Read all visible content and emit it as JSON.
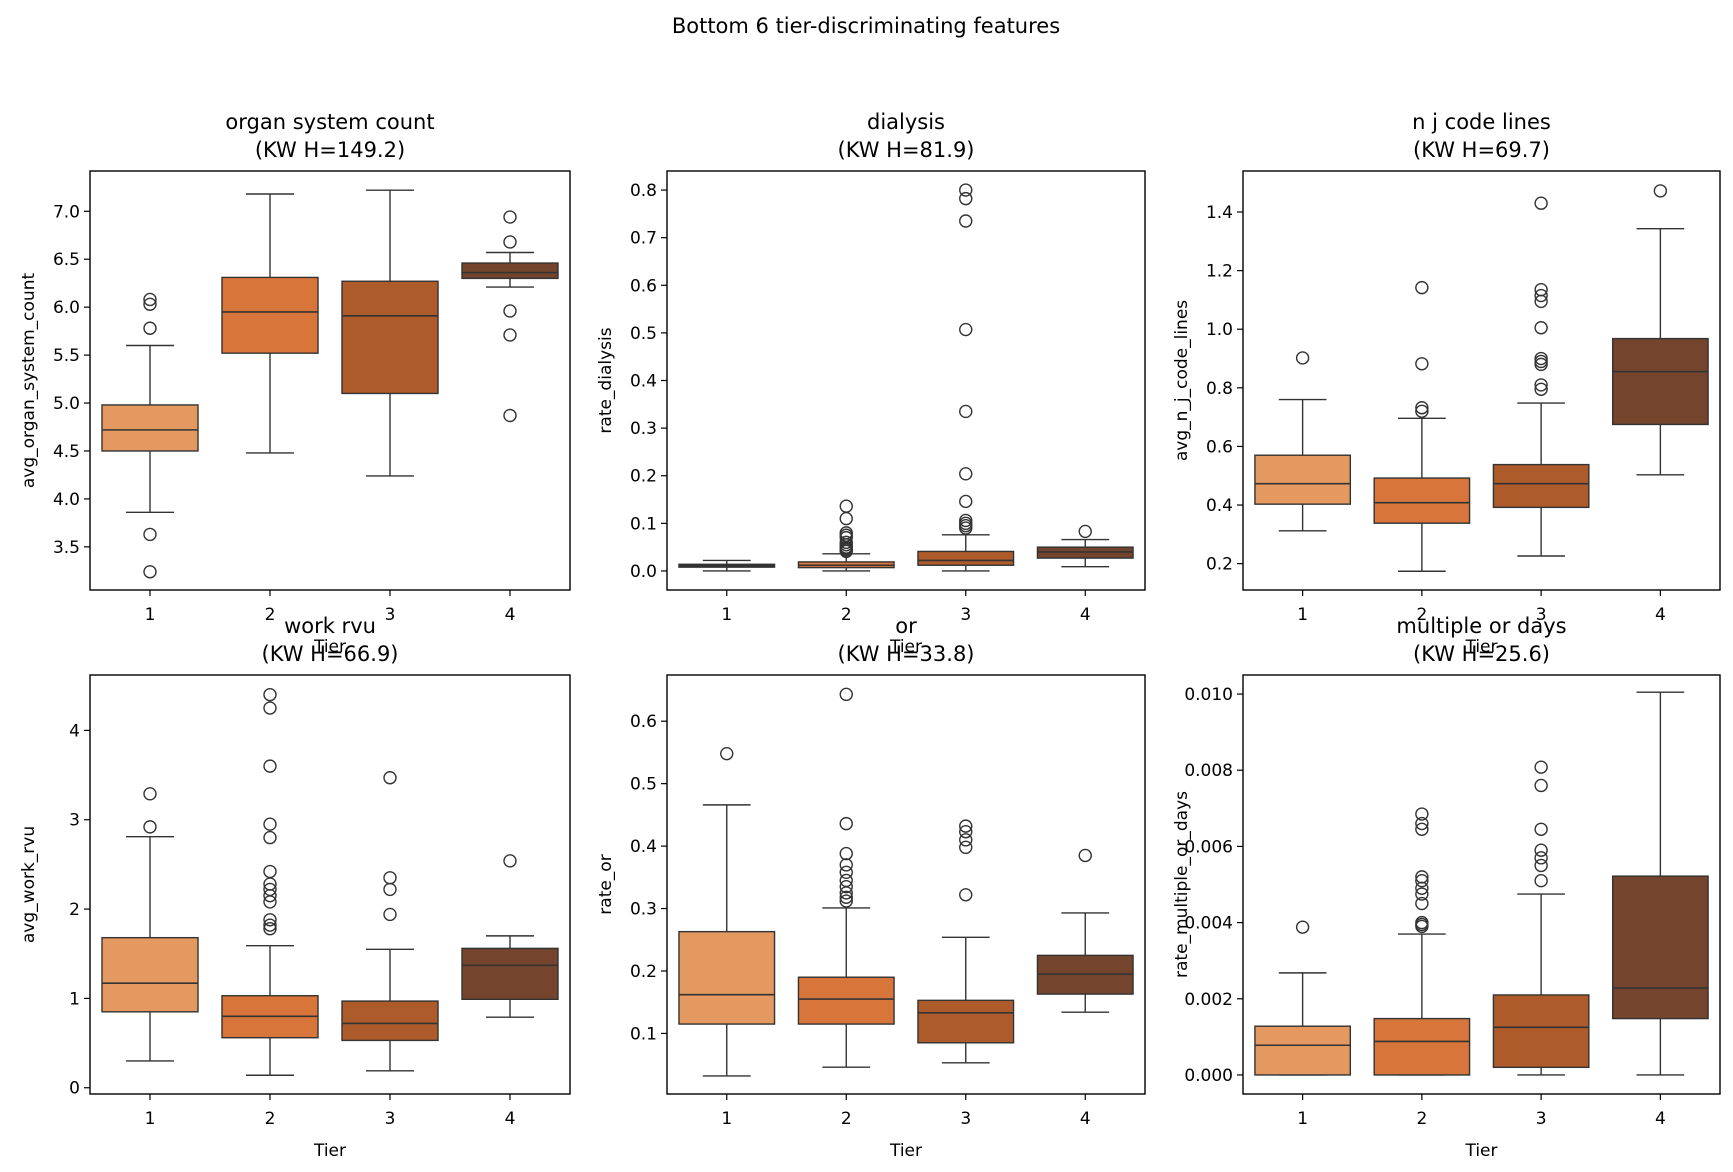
{
  "suptitle": "Bottom 6 tier-discriminating features",
  "colors": [
    "#E3995F",
    "#D8753A",
    "#AE5B2C",
    "#74452C"
  ],
  "chart_data": [
    {
      "type": "box",
      "title_line1": "organ system count",
      "title_line2": "(KW H=149.2)",
      "xlabel": "Tier",
      "ylabel": "avg_organ_system_count",
      "categories": [
        "1",
        "2",
        "3",
        "4"
      ],
      "ylim": [
        3.05,
        7.42
      ],
      "yticks": [
        3.5,
        4.0,
        4.5,
        5.0,
        5.5,
        6.0,
        6.5,
        7.0
      ],
      "ytick_labels": [
        "3.5",
        "4.0",
        "4.5",
        "5.0",
        "5.5",
        "6.0",
        "6.5",
        "7.0"
      ],
      "boxes": [
        {
          "tier": "1",
          "q1": 4.5,
          "median": 4.72,
          "q3": 4.98,
          "whislo": 3.86,
          "whishi": 5.6,
          "fliers": [
            6.08,
            6.03,
            5.78,
            3.63,
            3.24
          ]
        },
        {
          "tier": "2",
          "q1": 5.52,
          "median": 5.95,
          "q3": 6.31,
          "whislo": 4.48,
          "whishi": 7.18,
          "fliers": []
        },
        {
          "tier": "3",
          "q1": 5.1,
          "median": 5.91,
          "q3": 6.27,
          "whislo": 4.24,
          "whishi": 7.22,
          "fliers": []
        },
        {
          "tier": "4",
          "q1": 6.3,
          "median": 6.36,
          "q3": 6.46,
          "whislo": 6.21,
          "whishi": 6.57,
          "fliers": [
            6.94,
            6.68,
            5.96,
            5.71,
            4.87
          ]
        }
      ]
    },
    {
      "type": "box",
      "title_line1": "dialysis",
      "title_line2": "(KW H=81.9)",
      "xlabel": "Tier",
      "ylabel": "rate_dialysis",
      "categories": [
        "1",
        "2",
        "3",
        "4"
      ],
      "ylim": [
        -0.04,
        0.84
      ],
      "yticks": [
        0.0,
        0.1,
        0.2,
        0.3,
        0.4,
        0.5,
        0.6,
        0.7,
        0.8
      ],
      "ytick_labels": [
        "0.0",
        "0.1",
        "0.2",
        "0.3",
        "0.4",
        "0.5",
        "0.6",
        "0.7",
        "0.8"
      ],
      "boxes": [
        {
          "tier": "1",
          "q1": 0.008,
          "median": 0.011,
          "q3": 0.014,
          "whislo": 0.0,
          "whishi": 0.022,
          "fliers": []
        },
        {
          "tier": "2",
          "q1": 0.007,
          "median": 0.012,
          "q3": 0.019,
          "whislo": 0.0,
          "whishi": 0.036,
          "fliers": [
            0.136,
            0.11,
            0.08,
            0.075,
            0.07,
            0.06,
            0.055,
            0.05,
            0.047,
            0.044,
            0.041
          ]
        },
        {
          "tier": "3",
          "q1": 0.012,
          "median": 0.022,
          "q3": 0.041,
          "whislo": 0.0,
          "whishi": 0.076,
          "fliers": [
            0.8,
            0.782,
            0.735,
            0.507,
            0.335,
            0.204,
            0.146,
            0.106,
            0.1,
            0.095,
            0.09
          ]
        },
        {
          "tier": "4",
          "q1": 0.027,
          "median": 0.04,
          "q3": 0.05,
          "whislo": 0.009,
          "whishi": 0.066,
          "fliers": [
            0.083
          ]
        }
      ]
    },
    {
      "type": "box",
      "title_line1": "n j code lines",
      "title_line2": "(KW H=69.7)",
      "xlabel": "Tier",
      "ylabel": "avg_n_j_code_lines",
      "categories": [
        "1",
        "2",
        "3",
        "4"
      ],
      "ylim": [
        0.11,
        1.54
      ],
      "yticks": [
        0.2,
        0.4,
        0.6,
        0.8,
        1.0,
        1.2,
        1.4
      ],
      "ytick_labels": [
        "0.2",
        "0.4",
        "0.6",
        "0.8",
        "1.0",
        "1.2",
        "1.4"
      ],
      "boxes": [
        {
          "tier": "1",
          "q1": 0.403,
          "median": 0.473,
          "q3": 0.57,
          "whislo": 0.312,
          "whishi": 0.76,
          "fliers": [
            0.902
          ]
        },
        {
          "tier": "2",
          "q1": 0.338,
          "median": 0.408,
          "q3": 0.492,
          "whislo": 0.174,
          "whishi": 0.696,
          "fliers": [
            1.142,
            0.882,
            0.732,
            0.72
          ]
        },
        {
          "tier": "3",
          "q1": 0.392,
          "median": 0.473,
          "q3": 0.538,
          "whislo": 0.226,
          "whishi": 0.748,
          "fliers": [
            1.43,
            1.135,
            1.115,
            1.095,
            1.005,
            0.9,
            0.89,
            0.88,
            0.81,
            0.795
          ]
        },
        {
          "tier": "4",
          "q1": 0.675,
          "median": 0.855,
          "q3": 0.968,
          "whislo": 0.503,
          "whishi": 1.343,
          "fliers": [
            1.472
          ]
        }
      ]
    },
    {
      "type": "box",
      "title_line1": "work rvu",
      "title_line2": "(KW H=66.9)",
      "xlabel": "Tier",
      "ylabel": "avg_work_rvu",
      "categories": [
        "1",
        "2",
        "3",
        "4"
      ],
      "ylim": [
        -0.07,
        4.62
      ],
      "yticks": [
        0,
        1,
        2,
        3,
        4
      ],
      "ytick_labels": [
        "0",
        "1",
        "2",
        "3",
        "4"
      ],
      "boxes": [
        {
          "tier": "1",
          "q1": 0.85,
          "median": 1.17,
          "q3": 1.68,
          "whislo": 0.3,
          "whishi": 2.81,
          "fliers": [
            3.29,
            2.92
          ]
        },
        {
          "tier": "2",
          "q1": 0.56,
          "median": 0.8,
          "q3": 1.03,
          "whislo": 0.14,
          "whishi": 1.59,
          "fliers": [
            4.4,
            4.25,
            3.6,
            2.95,
            2.8,
            2.42,
            2.28,
            2.22,
            2.15,
            2.08,
            1.88,
            1.82,
            1.78
          ]
        },
        {
          "tier": "3",
          "q1": 0.53,
          "median": 0.72,
          "q3": 0.97,
          "whislo": 0.19,
          "whishi": 1.55,
          "fliers": [
            3.47,
            2.35,
            2.22,
            1.94
          ]
        },
        {
          "tier": "4",
          "q1": 0.99,
          "median": 1.37,
          "q3": 1.56,
          "whislo": 0.79,
          "whishi": 1.7,
          "fliers": [
            2.54
          ]
        }
      ]
    },
    {
      "type": "box",
      "title_line1": "or",
      "title_line2": "(KW H=33.8)",
      "xlabel": "Tier",
      "ylabel": "rate_or",
      "categories": [
        "1",
        "2",
        "3",
        "4"
      ],
      "ylim": [
        0.003,
        0.674
      ],
      "yticks": [
        0.1,
        0.2,
        0.3,
        0.4,
        0.5,
        0.6
      ],
      "ytick_labels": [
        "0.1",
        "0.2",
        "0.3",
        "0.4",
        "0.5",
        "0.6"
      ],
      "boxes": [
        {
          "tier": "1",
          "q1": 0.115,
          "median": 0.162,
          "q3": 0.263,
          "whislo": 0.032,
          "whishi": 0.466,
          "fliers": [
            0.548
          ]
        },
        {
          "tier": "2",
          "q1": 0.115,
          "median": 0.155,
          "q3": 0.19,
          "whislo": 0.046,
          "whishi": 0.301,
          "fliers": [
            0.643,
            0.436,
            0.388,
            0.37,
            0.358,
            0.345,
            0.335,
            0.325,
            0.318,
            0.312
          ]
        },
        {
          "tier": "3",
          "q1": 0.085,
          "median": 0.133,
          "q3": 0.153,
          "whislo": 0.053,
          "whishi": 0.254,
          "fliers": [
            0.432,
            0.423,
            0.41,
            0.398,
            0.322
          ]
        },
        {
          "tier": "4",
          "q1": 0.163,
          "median": 0.195,
          "q3": 0.225,
          "whislo": 0.134,
          "whishi": 0.293,
          "fliers": [
            0.385
          ]
        }
      ]
    },
    {
      "type": "box",
      "title_line1": "multiple or days",
      "title_line2": "(KW H=25.6)",
      "xlabel": "Tier",
      "ylabel": "rate_multiple_or_days",
      "categories": [
        "1",
        "2",
        "3",
        "4"
      ],
      "ylim": [
        -0.0005,
        0.0105
      ],
      "yticks": [
        0.0,
        0.002,
        0.004,
        0.006,
        0.008,
        0.01
      ],
      "ytick_labels": [
        "0.000",
        "0.002",
        "0.004",
        "0.006",
        "0.008",
        "0.010"
      ],
      "boxes": [
        {
          "tier": "1",
          "q1": 0.0,
          "median": 0.00078,
          "q3": 0.00128,
          "whislo": 0.0,
          "whishi": 0.00268,
          "fliers": [
            0.00388
          ]
        },
        {
          "tier": "2",
          "q1": 0.0,
          "median": 0.00088,
          "q3": 0.00148,
          "whislo": 0.0,
          "whishi": 0.0037,
          "fliers": [
            0.00685,
            0.0066,
            0.00645,
            0.0052,
            0.0051,
            0.0049,
            0.00475,
            0.0045,
            0.004,
            0.00395,
            0.0039
          ]
        },
        {
          "tier": "3",
          "q1": 0.0002,
          "median": 0.00125,
          "q3": 0.0021,
          "whislo": 0.0,
          "whishi": 0.00475,
          "fliers": [
            0.00808,
            0.0076,
            0.00645,
            0.0059,
            0.0057,
            0.0055,
            0.0051
          ]
        },
        {
          "tier": "4",
          "q1": 0.00148,
          "median": 0.00228,
          "q3": 0.00522,
          "whislo": 0.0,
          "whishi": 0.01005,
          "fliers": []
        }
      ]
    }
  ]
}
